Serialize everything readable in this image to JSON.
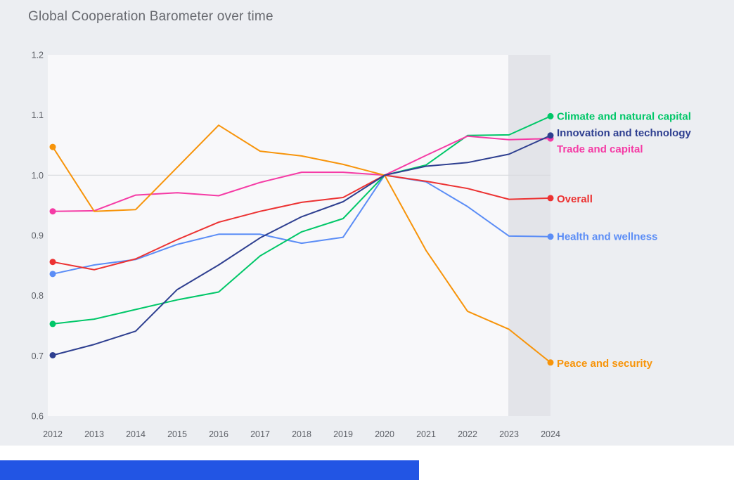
{
  "page": {
    "title": "Global Cooperation Barometer over time"
  },
  "chart_data": {
    "type": "line",
    "title": "Global Cooperation Barometer over time",
    "x_labels": [
      "2012",
      "2013",
      "2014",
      "2015",
      "2016",
      "2017",
      "2018",
      "2019",
      "2020",
      "2021",
      "2022",
      "2023",
      "2024"
    ],
    "y_ticks": [
      "1.2",
      "1.1",
      "1.0",
      "0.9",
      "0.8",
      "0.7",
      "0.6"
    ],
    "ylim": [
      0.6,
      1.2
    ],
    "baseline_value": 1.0,
    "grid": "baseline-only",
    "legend_position": "right-of-line-ends",
    "forecast_band": {
      "start": "2023",
      "end": "2024"
    },
    "series": [
      {
        "id": "climate",
        "name": "Climate and natural capital",
        "color": "#00C768",
        "values": [
          0.753,
          0.761,
          0.777,
          0.793,
          0.806,
          0.866,
          0.906,
          0.928,
          1.0,
          1.017,
          1.066,
          1.067,
          1.098
        ]
      },
      {
        "id": "innovation",
        "name": "Innovation and technology",
        "color": "#2E3F90",
        "values": [
          0.701,
          0.719,
          0.741,
          0.81,
          0.851,
          0.896,
          0.931,
          0.956,
          1.0,
          1.015,
          1.021,
          1.035,
          1.066
        ]
      },
      {
        "id": "trade",
        "name": "Trade and capital",
        "color": "#F53BA5",
        "values": [
          0.94,
          0.941,
          0.967,
          0.971,
          0.966,
          0.988,
          1.005,
          1.005,
          1.0,
          1.033,
          1.065,
          1.059,
          1.061
        ]
      },
      {
        "id": "overall",
        "name": "Overall",
        "color": "#EC3232",
        "values": [
          0.856,
          0.843,
          0.861,
          0.893,
          0.922,
          0.94,
          0.955,
          0.963,
          1.0,
          0.99,
          0.978,
          0.96,
          0.962
        ]
      },
      {
        "id": "health",
        "name": "Health and wellness",
        "color": "#5B8DF6",
        "values": [
          0.836,
          0.851,
          0.86,
          0.885,
          0.902,
          0.902,
          0.887,
          0.897,
          1.0,
          0.989,
          0.948,
          0.899,
          0.898
        ]
      },
      {
        "id": "peace",
        "name": "Peace and security",
        "color": "#F7940A",
        "values": [
          1.047,
          0.94,
          0.943,
          1.013,
          1.083,
          1.04,
          1.032,
          1.018,
          1.0,
          0.875,
          0.774,
          0.744,
          0.689
        ]
      }
    ],
    "colors": {
      "page_background": "#ECEEF2",
      "plot_background": "#F8F8FA",
      "forecast_band": "#E3E4E9",
      "baseline_gridline": "#D9DADE",
      "tick_text": "#5C5F66",
      "title_text": "#67696F",
      "footer_bar": "#2255E4"
    }
  }
}
